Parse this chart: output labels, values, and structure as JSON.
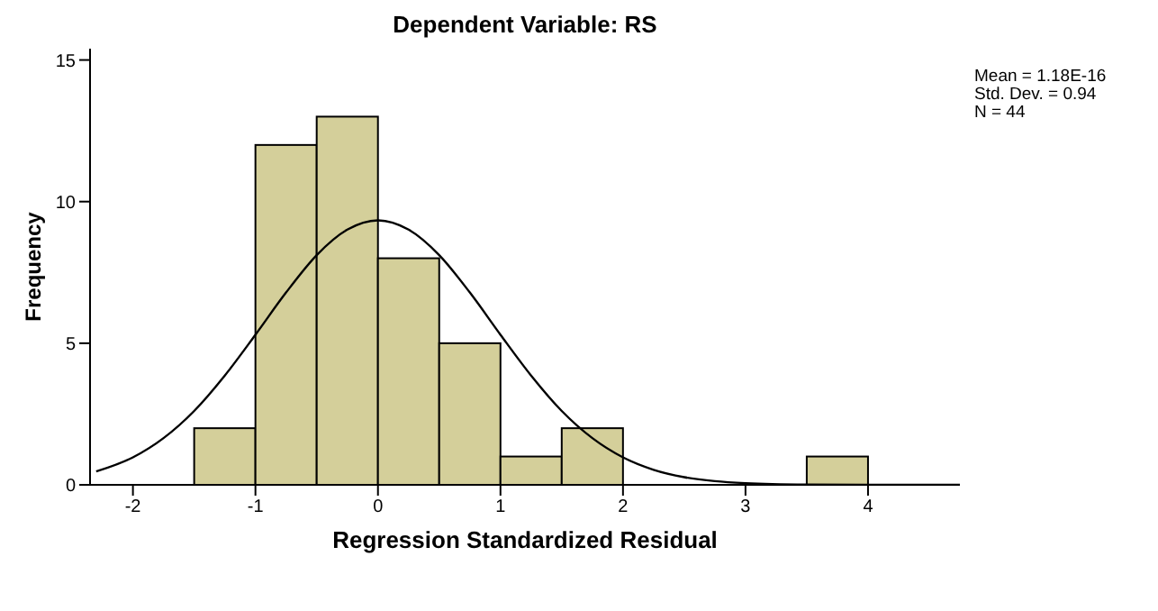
{
  "chart_data": {
    "type": "histogram",
    "title": "Dependent Variable: RS",
    "xlabel": "Regression Standardized Residual",
    "ylabel": "Frequency",
    "bins": [
      -1.5,
      -1,
      -0.5,
      0,
      0.5,
      1,
      1.5,
      2,
      2.5,
      3,
      3.5,
      4
    ],
    "values": [
      2,
      12,
      13,
      8,
      5,
      1,
      2,
      0,
      0,
      0,
      1
    ],
    "color": "#d4cf9a",
    "series": [
      {
        "type": "line",
        "color": "#000000",
        "x": [
          -2.3,
          -2,
          -1.75,
          -1.5,
          -1.25,
          -1,
          -0.75,
          -0.5,
          -0.25,
          0,
          0.25,
          0.5,
          0.75,
          1,
          1.25,
          1.5,
          1.75,
          2,
          2.25,
          2.5,
          2.75,
          3,
          3.5,
          4,
          4.5,
          4.75
        ],
        "values": [
          0.47,
          0.97,
          1.65,
          2.61,
          3.86,
          5.3,
          6.79,
          8.11,
          9.01,
          9.34,
          9.01,
          8.11,
          6.79,
          5.3,
          3.86,
          2.61,
          1.65,
          0.97,
          0.53,
          0.27,
          0.13,
          0.06,
          0.01,
          0,
          0,
          0
        ]
      }
    ],
    "xlim": [
      -2.35,
      4.75
    ],
    "xticks": [
      -2,
      -1,
      0,
      1,
      2,
      3,
      4
    ],
    "ylim": [
      0,
      15.4
    ],
    "yticks": [
      0,
      5,
      10,
      15
    ],
    "annotations": [
      "Mean = 1.18E-16",
      "Std. Dev. = 0.94",
      "N = 44"
    ]
  }
}
